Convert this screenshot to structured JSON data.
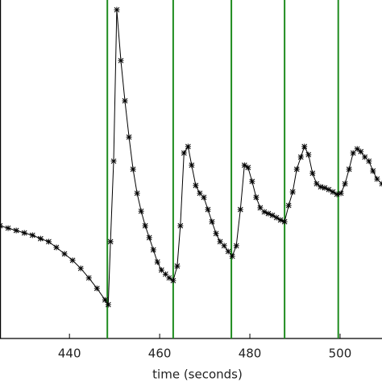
{
  "chart_data": {
    "type": "line",
    "xlabel": "time (seconds)",
    "x": [
      424.6,
      426.4,
      428.2,
      430.0,
      431.8,
      433.6,
      435.4,
      437.1,
      438.9,
      440.7,
      442.5,
      444.3,
      446.1,
      447.9,
      448.6,
      449.1,
      449.8,
      450.5,
      451.4,
      452.3,
      453.2,
      454.1,
      455.0,
      455.9,
      456.8,
      457.7,
      458.6,
      459.5,
      460.4,
      461.3,
      462.1,
      463.0,
      463.9,
      464.6,
      465.4,
      466.3,
      467.1,
      468.0,
      468.9,
      469.8,
      470.7,
      471.6,
      472.5,
      473.4,
      474.3,
      475.2,
      476.1,
      477.0,
      477.9,
      478.8,
      479.6,
      480.5,
      481.4,
      482.3,
      483.2,
      484.1,
      485.0,
      485.9,
      486.8,
      487.7,
      488.6,
      489.5,
      490.4,
      491.3,
      492.1,
      493.0,
      493.9,
      494.8,
      495.7,
      496.6,
      497.5,
      498.4,
      499.3,
      500.2,
      501.1,
      502.0,
      502.9,
      503.8,
      504.6,
      505.5,
      506.4,
      507.3,
      508.2,
      509.3
    ],
    "values": [
      33.3,
      32.6,
      31.9,
      31.2,
      30.5,
      29.5,
      28.6,
      26.9,
      25.0,
      23.1,
      20.7,
      17.9,
      14.8,
      11.4,
      10.0,
      28.6,
      52.4,
      97.1,
      82.1,
      70.2,
      59.5,
      50.0,
      42.9,
      37.6,
      33.3,
      29.8,
      26.2,
      22.6,
      20.2,
      19.0,
      17.9,
      17.1,
      21.4,
      33.3,
      54.8,
      56.7,
      51.2,
      45.2,
      42.9,
      41.7,
      38.1,
      34.5,
      31.0,
      28.6,
      27.4,
      25.7,
      24.3,
      27.4,
      38.1,
      51.2,
      50.5,
      46.4,
      41.7,
      38.6,
      37.4,
      36.9,
      36.4,
      35.7,
      35.0,
      34.5,
      39.3,
      43.3,
      50.0,
      53.6,
      56.7,
      54.3,
      48.8,
      45.7,
      44.8,
      44.5,
      44.0,
      43.3,
      42.6,
      42.9,
      45.7,
      50.0,
      54.8,
      56.0,
      55.2,
      53.6,
      52.4,
      49.5,
      47.1,
      45.7
    ],
    "color": "#000000",
    "vlines": [
      448.4,
      463.0,
      475.9,
      487.7,
      499.6
    ],
    "vline_color": "#1f8c1f",
    "xlim": [
      424.6,
      509.3
    ],
    "xticks": [
      440,
      460,
      480,
      500
    ],
    "ylim": [
      0,
      100
    ]
  }
}
